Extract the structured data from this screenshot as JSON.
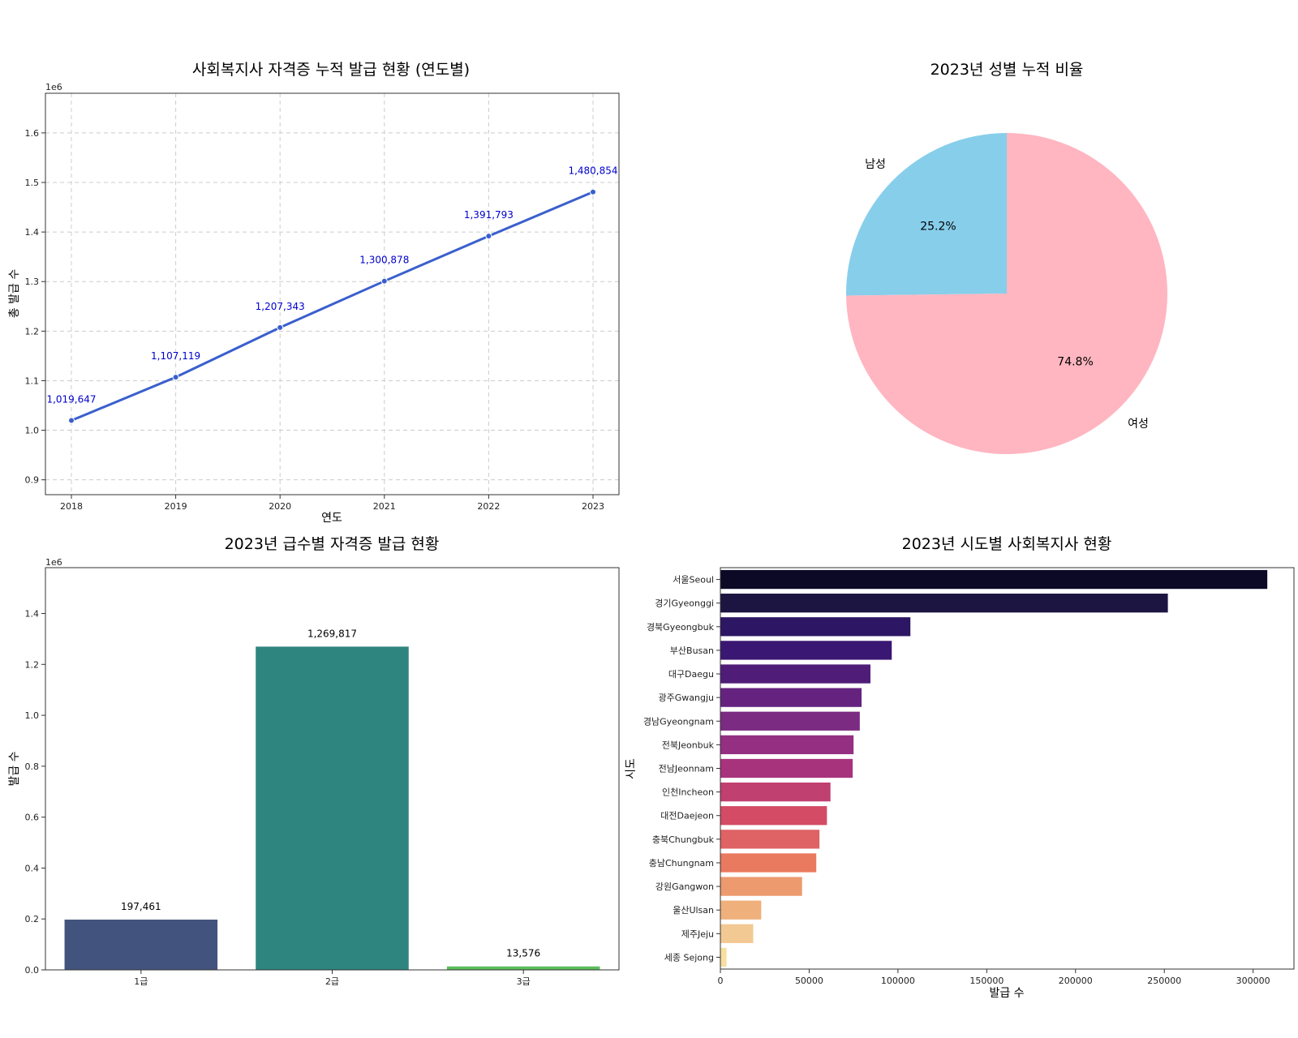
{
  "chart_data": [
    {
      "type": "line",
      "title": "사회복지사 자격증 누적 발급 현황 (연도별)",
      "xlabel": "연도",
      "ylabel": "총 발급 수",
      "offset_label": "1e6",
      "x": [
        "2018",
        "2019",
        "2020",
        "2021",
        "2022",
        "2023"
      ],
      "values": [
        1019647,
        1107119,
        1207343,
        1300878,
        1391793,
        1480854
      ],
      "data_labels": [
        "1,019,647",
        "1,107,119",
        "1,207,343",
        "1,300,878",
        "1,391,793",
        "1,480,854"
      ],
      "ylim": [
        870000,
        1680000
      ],
      "yticks": [
        0.9,
        1.0,
        1.1,
        1.2,
        1.3,
        1.4,
        1.5,
        1.6
      ],
      "ytick_labels": [
        "0.9",
        "1.0",
        "1.1",
        "1.2",
        "1.3",
        "1.4",
        "1.5",
        "1.6"
      ],
      "grid": true,
      "color": "#3a5fcd"
    },
    {
      "type": "pie",
      "title": "2023년 성별 누적 비율",
      "slices": [
        {
          "label": "남성",
          "value": 25.2,
          "pct_label": "25.2%",
          "color": "#87ceeb"
        },
        {
          "label": "여성",
          "value": 74.8,
          "pct_label": "74.8%",
          "color": "#ffb6c1"
        }
      ]
    },
    {
      "type": "bar",
      "title": "2023년 급수별 자격증 발급 현황",
      "xlabel": "",
      "ylabel": "발급 수",
      "offset_label": "1e6",
      "categories": [
        "1급",
        "2급",
        "3급"
      ],
      "values": [
        197461,
        1269817,
        13576
      ],
      "data_labels": [
        "197,461",
        "1,269,817",
        "13,576"
      ],
      "colors": [
        "#42547e",
        "#2e857f",
        "#5bbd5a"
      ],
      "ylim": [
        0,
        1580000
      ],
      "yticks": [
        0.0,
        0.2,
        0.4,
        0.6,
        0.8,
        1.0,
        1.2,
        1.4
      ],
      "ytick_labels": [
        "0.0",
        "0.2",
        "0.4",
        "0.6",
        "0.8",
        "1.0",
        "1.2",
        "1.4"
      ]
    },
    {
      "type": "bar",
      "orientation": "horizontal",
      "title": "2023년 시도별 사회복지사 현황",
      "xlabel": "발급 수",
      "ylabel": "시도",
      "categories": [
        "서울Seoul",
        "경기Gyeonggi",
        "경북Gyeongbuk",
        "부산Busan",
        "대구Daegu",
        "광주Gwangju",
        "경남Gyeongnam",
        "전북Jeonbuk",
        "전남Jeonnam",
        "인천Incheon",
        "대전Daejeon",
        "충북Chungbuk",
        "충남Chungnam",
        "강원Gangwon",
        "울산Ulsan",
        "제주Jeju",
        "세종 Sejong"
      ],
      "values": [
        308000,
        252000,
        107000,
        96500,
        84500,
        79500,
        78500,
        75000,
        74500,
        62000,
        60000,
        55800,
        54000,
        46000,
        23000,
        18500,
        3500
      ],
      "colors": [
        "#0c0927",
        "#1d1541",
        "#2d1663",
        "#3a1772",
        "#4f1d78",
        "#65237f",
        "#7b2b81",
        "#942f82",
        "#a8337d",
        "#c0406f",
        "#d34b65",
        "#df6264",
        "#e97a60",
        "#ec9a6e",
        "#efb07c",
        "#f2c993",
        "#f8dfa1"
      ],
      "xlim": [
        0,
        323000
      ],
      "xticks": [
        0,
        50000,
        100000,
        150000,
        200000,
        250000,
        300000
      ],
      "xtick_labels": [
        "0",
        "50000",
        "100000",
        "150000",
        "200000",
        "250000",
        "300000"
      ]
    }
  ]
}
